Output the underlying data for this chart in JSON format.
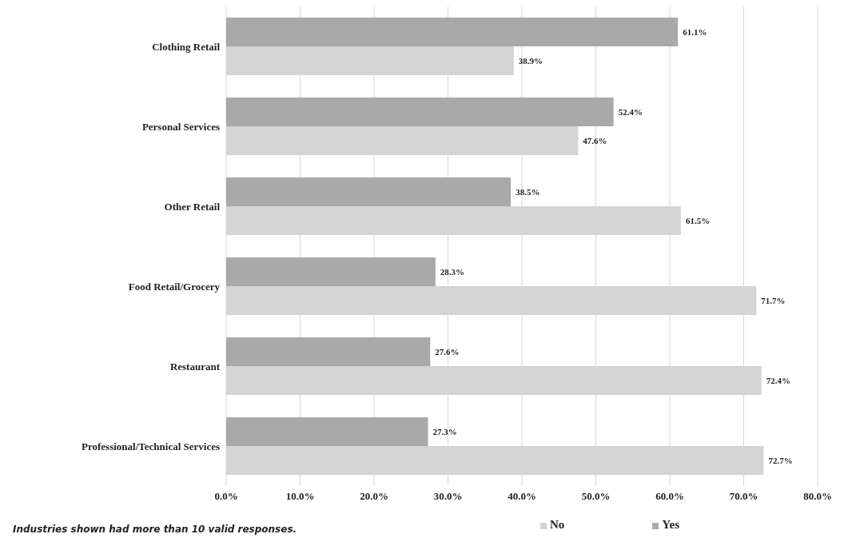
{
  "chart_data": {
    "type": "bar",
    "orientation": "horizontal",
    "categories": [
      "Clothing Retail",
      "Personal Services",
      "Other Retail",
      "Food Retail/Grocery",
      "Restaurant",
      "Professional/Technical Services"
    ],
    "series": [
      {
        "name": "Yes",
        "color": "#a9a9a9",
        "values": [
          61.1,
          52.4,
          38.5,
          28.3,
          27.6,
          27.3
        ],
        "value_labels": [
          "61.1%",
          "52.4%",
          "38.5%",
          "28.3%",
          "27.6%",
          "27.3%"
        ]
      },
      {
        "name": "No",
        "color": "#d4d4d4",
        "values": [
          38.9,
          47.6,
          61.5,
          71.7,
          72.4,
          72.7
        ],
        "value_labels": [
          "38.9%",
          "47.6%",
          "61.5%",
          "71.7%",
          "72.4%",
          "72.7%"
        ]
      }
    ],
    "xlim": [
      0,
      80
    ],
    "xticks": [
      {
        "value": 0,
        "label": "0.0%"
      },
      {
        "value": 10,
        "label": "10.0%"
      },
      {
        "value": 20,
        "label": "20.0%"
      },
      {
        "value": 30,
        "label": "30.0%"
      },
      {
        "value": 40,
        "label": "40.0%"
      },
      {
        "value": 50,
        "label": "50.0%"
      },
      {
        "value": 60,
        "label": "60.0%"
      },
      {
        "value": 70,
        "label": "70.0%"
      },
      {
        "value": 80,
        "label": "80.0%"
      }
    ],
    "grid": "x",
    "legend": "bottom",
    "annotations": [
      "Industries shown had more than 10 valid responses."
    ]
  }
}
